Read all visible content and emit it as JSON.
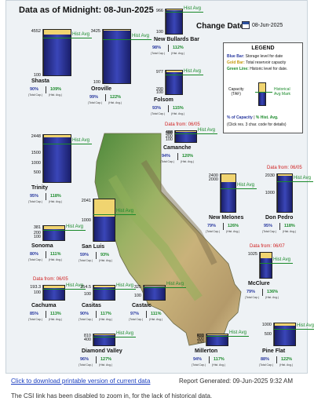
{
  "header": {
    "title": "Data as of Midnight: 08-Jun-2025",
    "change_date_label": "Change Date:",
    "change_date_value": "08-Jun-2025"
  },
  "legend": {
    "title": "LEGEND",
    "blue_key": "Blue Bar:",
    "blue_desc": "Storage level for date",
    "gold_key": "Gold Bar:",
    "gold_desc": "Total reservoir capacity",
    "green_key": "Green Line:",
    "green_desc": "Historic level for date.",
    "capacity_label": "Capacity",
    "taf_label": "(TAF)",
    "hist_label_1": "Historical",
    "hist_label_2": "Avg Mark",
    "pct_capacity": "% of Capacity",
    "pct_hist": "% Hist. Avg.",
    "click_note": "(Click res. 3 char. code for details)"
  },
  "labels": {
    "hist_avg": "Hist Avg",
    "total_cap": "(Total Cap.)",
    "hist_avg_small": "(Hist. Avg.)",
    "data_from": "Data from:"
  },
  "reservoirs": [
    {
      "name": "Shasta",
      "capacity": "4552",
      "ticks": [
        "4552",
        "100"
      ],
      "pct_capacity": "90%",
      "pct_hist": "109%",
      "storage_fraction": 0.9,
      "hist_fraction": 0.82,
      "data_from": ""
    },
    {
      "name": "Oroville",
      "capacity": "3425",
      "ticks": [
        "3425",
        "100"
      ],
      "pct_capacity": "99%",
      "pct_hist": "122%",
      "storage_fraction": 0.99,
      "hist_fraction": 0.81,
      "data_from": ""
    },
    {
      "name": "New Bullards Bar",
      "capacity": "966",
      "ticks": [
        "966",
        "100"
      ],
      "pct_capacity": "98%",
      "pct_hist": "112%",
      "storage_fraction": 0.98,
      "hist_fraction": 0.88,
      "data_from": ""
    },
    {
      "name": "Folsom",
      "capacity": "977",
      "ticks": [
        "977",
        "200",
        "100"
      ],
      "pct_capacity": "93%",
      "pct_hist": "115%",
      "storage_fraction": 0.93,
      "hist_fraction": 0.81,
      "data_from": ""
    },
    {
      "name": "Trinity",
      "capacity": "2448",
      "ticks": [
        "2448",
        "1500",
        "1000",
        "500"
      ],
      "pct_capacity": "95%",
      "pct_hist": "118%",
      "storage_fraction": 0.95,
      "hist_fraction": 0.8,
      "data_from": ""
    },
    {
      "name": "Camanche",
      "capacity": "417",
      "ticks": [
        "417",
        "400",
        "300",
        "200",
        "100"
      ],
      "pct_capacity": "94%",
      "pct_hist": "120%",
      "storage_fraction": 0.94,
      "hist_fraction": 0.78,
      "data_from": "06/05"
    },
    {
      "name": "New Melones",
      "capacity": "2400",
      "ticks": [
        "2400",
        "2000"
      ],
      "pct_capacity": "79%",
      "pct_hist": "126%",
      "storage_fraction": 0.79,
      "hist_fraction": 0.63,
      "data_from": ""
    },
    {
      "name": "Don Pedro",
      "capacity": "2030",
      "ticks": [
        "2030",
        "1000"
      ],
      "pct_capacity": "95%",
      "pct_hist": "118%",
      "storage_fraction": 0.95,
      "hist_fraction": 0.8,
      "data_from": "06/05"
    },
    {
      "name": "Sonoma",
      "capacity": "381",
      "ticks": [
        "381",
        "200",
        "100"
      ],
      "pct_capacity": "80%",
      "pct_hist": "111%",
      "storage_fraction": 0.8,
      "hist_fraction": 0.72,
      "data_from": ""
    },
    {
      "name": "San Luis",
      "capacity": "2041",
      "ticks": [
        "2041",
        "1000"
      ],
      "pct_capacity": "59%",
      "pct_hist": "93%",
      "storage_fraction": 0.59,
      "hist_fraction": 0.63,
      "data_from": ""
    },
    {
      "name": "McClure",
      "capacity": "1025",
      "ticks": [
        "1025"
      ],
      "pct_capacity": "79%",
      "pct_hist": "136%",
      "storage_fraction": 0.79,
      "hist_fraction": 0.58,
      "data_from": "06/07"
    },
    {
      "name": "Cachuma",
      "capacity": "193.3",
      "ticks": [
        "193.3",
        "100"
      ],
      "pct_capacity": "85%",
      "pct_hist": "113%",
      "storage_fraction": 0.85,
      "hist_fraction": 0.75,
      "data_from": "06/05"
    },
    {
      "name": "Casitas",
      "capacity": "254.5",
      "ticks": [
        "254.5",
        "100"
      ],
      "pct_capacity": "90%",
      "pct_hist": "117%",
      "storage_fraction": 0.9,
      "hist_fraction": 0.77,
      "data_from": ""
    },
    {
      "name": "Castaic",
      "capacity": "325",
      "ticks": [
        "325",
        "100"
      ],
      "pct_capacity": "97%",
      "pct_hist": "111%",
      "storage_fraction": 0.97,
      "hist_fraction": 0.87,
      "data_from": ""
    },
    {
      "name": "Diamond Valley",
      "capacity": "810",
      "ticks": [
        "810",
        "400"
      ],
      "pct_capacity": "96%",
      "pct_hist": "127%",
      "storage_fraction": 0.96,
      "hist_fraction": 0.76,
      "data_from": ""
    },
    {
      "name": "Millerton",
      "capacity": "521",
      "ticks": [
        "521",
        "450",
        "300",
        "150"
      ],
      "pct_capacity": "94%",
      "pct_hist": "117%",
      "storage_fraction": 0.94,
      "hist_fraction": 0.8,
      "data_from": ""
    },
    {
      "name": "Pine Flat",
      "capacity": "1000",
      "ticks": [
        "1000",
        "500"
      ],
      "pct_capacity": "88%",
      "pct_hist": "122%",
      "storage_fraction": 0.88,
      "hist_fraction": 0.72,
      "data_from": ""
    }
  ],
  "footer": {
    "download_link": "Click to download printable version of current data",
    "report_generated": "Report Generated: 09-Jun-2025 9:32 AM",
    "note": "The CSI link has been disabled to zoom in, for the lack of historical data."
  },
  "colors": {
    "storage_blue": "#2a3aa0",
    "capacity_gold": "#f0d470",
    "historic_green": "#1a8a2a",
    "data_from_red": "#d02020",
    "link_blue": "#1a3ec0"
  }
}
